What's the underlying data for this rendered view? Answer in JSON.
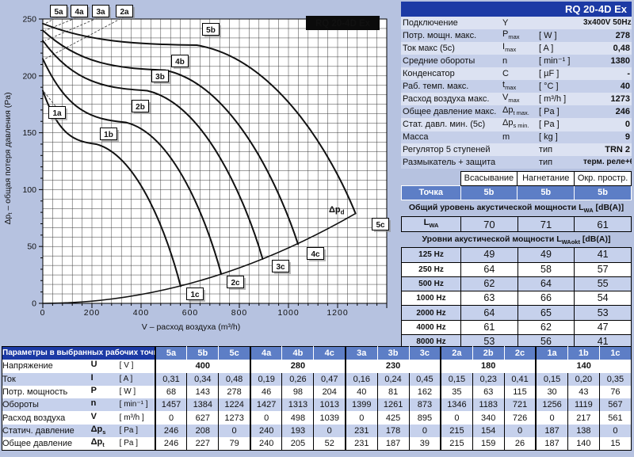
{
  "colors": {
    "header_blue": "#1c3aa5",
    "mid_blue": "#5d7ec6",
    "stripe_blue": "#c6d1ec",
    "page_bg": "#b6c2e0"
  },
  "chart_data": {
    "type": "line",
    "title": "RQ 20-4D Ex",
    "xlabel": "V – расход воздуха (m³/h)",
    "ylabel": {
      "pre": "Δp",
      "sub": "t",
      "post": " – общая потеря давления (Pa)"
    },
    "xlim": [
      0,
      1400
    ],
    "ylim": [
      0,
      250
    ],
    "xticks": [
      0,
      200,
      400,
      600,
      800,
      1000,
      1200
    ],
    "yticks": [
      0,
      50,
      100,
      150,
      200,
      250
    ],
    "grid": "on",
    "curves": [
      {
        "name": "5",
        "a": [
          0,
          246
        ],
        "b": [
          627,
          227
        ],
        "c": [
          1273,
          79
        ]
      },
      {
        "name": "4",
        "a": [
          0,
          240
        ],
        "b": [
          498,
          205
        ],
        "c": [
          1039,
          52
        ]
      },
      {
        "name": "3",
        "a": [
          0,
          231
        ],
        "b": [
          425,
          187
        ],
        "c": [
          895,
          39
        ]
      },
      {
        "name": "2",
        "a": [
          0,
          215
        ],
        "b": [
          340,
          159
        ],
        "c": [
          726,
          26
        ]
      },
      {
        "name": "1",
        "a": [
          0,
          187
        ],
        "b": [
          217,
          140
        ],
        "c": [
          561,
          15
        ]
      }
    ],
    "dynamic_pressure": {
      "label_pre": "Δp",
      "label_sub": "d",
      "end": [
        1273,
        79
      ]
    }
  },
  "spec": {
    "title": "RQ 20-4D Ex",
    "rows": [
      {
        "label": "Подключение",
        "sym": "Y",
        "sub": "",
        "unit": "",
        "value": "3x400V 50Hz"
      },
      {
        "label": "Потр. мощн. макс.",
        "sym": "P",
        "sub": "max",
        "unit": "[ W ]",
        "value": "278"
      },
      {
        "label": "Ток макс (5с)",
        "sym": "I",
        "sub": "max",
        "unit": "[ A ]",
        "value": "0,48"
      },
      {
        "label": "Средние обороты",
        "sym": "n",
        "sub": "",
        "unit": "[ min⁻¹ ]",
        "value": "1380"
      },
      {
        "label": "Конденсатор",
        "sym": "C",
        "sub": "",
        "unit": "[ µF ]",
        "value": "-"
      },
      {
        "label": "Раб. темп. макс.",
        "sym": "t",
        "sub": "max",
        "unit": "[ °C ]",
        "value": "40"
      },
      {
        "label": "Расход воздуха макс.",
        "sym": "V",
        "sub": "max",
        "unit": "[ m³/h ]",
        "value": "1273"
      },
      {
        "label": "Общее давление макс.",
        "sym": "Δp",
        "sub": "t max.",
        "unit": "[ Pa ]",
        "value": "246"
      },
      {
        "label": "Стат. давл. мин. (5с)",
        "sym": "Δp",
        "sub": "s min.",
        "unit": "[ Pa ]",
        "value": "0"
      },
      {
        "label": "Масса",
        "sym": "m",
        "sub": "",
        "unit": "[ kg ]",
        "value": "9"
      },
      {
        "label": "Регулятор 5 ступеней",
        "sym": "",
        "sub": "",
        "unit": "тип",
        "value": "TRN 2"
      },
      {
        "label": "Размыкатель + защита",
        "sym": "",
        "sub": "",
        "unit": "тип",
        "value": "терм. реле+6TD"
      }
    ]
  },
  "acoustic": {
    "header": {
      "cols": [
        "Всасывание",
        "Нагнетание",
        "Окр. простр."
      ]
    },
    "point": {
      "label": "Точка",
      "values": [
        "5b",
        "5b",
        "5b"
      ]
    },
    "lwa_title": {
      "pre": "Общий уровень акустической мощности L",
      "sub": "WA",
      "post": " [dB(A)]"
    },
    "lwa": {
      "sym": "L",
      "sub": "WA",
      "values": [
        "70",
        "71",
        "61"
      ]
    },
    "spectrum_title": {
      "pre": "Уровни акустической мощности L",
      "sub": "WAokt",
      "post": " [dB(A)]"
    },
    "octaves": [
      {
        "label": "125 Hz",
        "values": [
          "49",
          "49",
          "41"
        ]
      },
      {
        "label": "250 Hz",
        "values": [
          "64",
          "58",
          "57"
        ]
      },
      {
        "label": "500 Hz",
        "values": [
          "62",
          "64",
          "55"
        ]
      },
      {
        "label": "1000 Hz",
        "values": [
          "63",
          "66",
          "54"
        ]
      },
      {
        "label": "2000 Hz",
        "values": [
          "64",
          "65",
          "53"
        ]
      },
      {
        "label": "4000 Hz",
        "values": [
          "61",
          "62",
          "47"
        ]
      },
      {
        "label": "8000 Hz",
        "values": [
          "53",
          "56",
          "41"
        ]
      }
    ]
  },
  "bottom_table": {
    "title": "Параметры в выбранных рабочих точках",
    "columns": [
      "5a",
      "5b",
      "5c",
      "4a",
      "4b",
      "4c",
      "3a",
      "3b",
      "3c",
      "2a",
      "2b",
      "2c",
      "1a",
      "1b",
      "1c"
    ],
    "rows": {
      "voltage": {
        "label": "Напряжение",
        "sym": "U",
        "sub": "",
        "unit": "[ V ]",
        "values": [
          "400",
          "280",
          "230",
          "180",
          "140"
        ]
      },
      "current": {
        "label": "Ток",
        "sym": "I",
        "sub": "",
        "unit": "[ A ]",
        "values": [
          "0,31",
          "0,34",
          "0,48",
          "0,19",
          "0,26",
          "0,47",
          "0,16",
          "0,24",
          "0,45",
          "0,15",
          "0,23",
          "0,41",
          "0,15",
          "0,20",
          "0,35"
        ]
      },
      "power": {
        "label": "Потр. мощность",
        "sym": "P",
        "sub": "",
        "unit": "[ W ]",
        "values": [
          "68",
          "143",
          "278",
          "46",
          "98",
          "204",
          "40",
          "81",
          "162",
          "35",
          "63",
          "115",
          "30",
          "43",
          "76"
        ]
      },
      "speed": {
        "label": "Обороты",
        "sym": "n",
        "sub": "",
        "unit": "[ min⁻¹ ]",
        "values": [
          "1457",
          "1384",
          "1224",
          "1427",
          "1313",
          "1013",
          "1399",
          "1261",
          "873",
          "1346",
          "1183",
          "721",
          "1256",
          "1119",
          "567"
        ]
      },
      "airflow": {
        "label": "Расход воздуха",
        "sym": "V",
        "sub": "",
        "unit": "[ m³/h ]",
        "values": [
          "0",
          "627",
          "1273",
          "0",
          "498",
          "1039",
          "0",
          "425",
          "895",
          "0",
          "340",
          "726",
          "0",
          "217",
          "561"
        ]
      },
      "static_pressure": {
        "label": "Статич. давление",
        "sym": "Δp",
        "sub": "s",
        "unit": "[ Pa ]",
        "values": [
          "246",
          "208",
          "0",
          "240",
          "193",
          "0",
          "231",
          "178",
          "0",
          "215",
          "154",
          "0",
          "187",
          "138",
          "0"
        ]
      },
      "total_pressure": {
        "label": "Общее давление",
        "sym": "Δp",
        "sub": "t",
        "unit": "[ Pa ]",
        "values": [
          "246",
          "227",
          "79",
          "240",
          "205",
          "52",
          "231",
          "187",
          "39",
          "215",
          "159",
          "26",
          "187",
          "140",
          "15"
        ]
      }
    }
  }
}
